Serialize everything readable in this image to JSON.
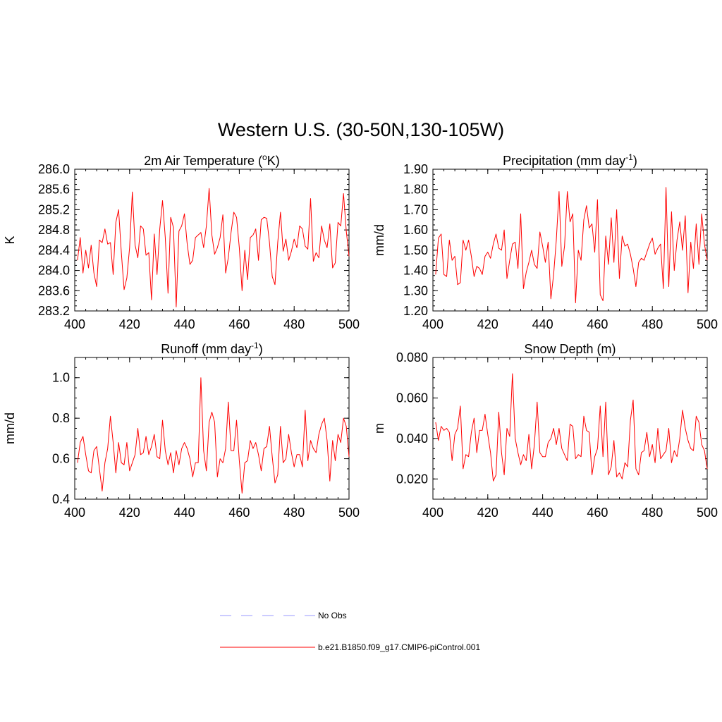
{
  "figure": {
    "title": "Western U.S. (30-50N,130-105W)"
  },
  "legend": [
    {
      "label": "No Obs",
      "color": "#9999ff",
      "dash": true
    },
    {
      "label": "b.e21.B1850.f09_g17.CMIP6-piControl.001",
      "color": "#ff0000",
      "dash": false
    }
  ],
  "chart_data": [
    {
      "type": "line",
      "title": "2m Air Temperature (oK)",
      "title_parts": {
        "pre": "2m Air Temperature (",
        "sup": "o",
        "post": "K)"
      },
      "ylabel": "K",
      "xlim": [
        400,
        500
      ],
      "ylim": [
        283.2,
        286.0
      ],
      "yticks": [
        283.2,
        283.6,
        284.0,
        284.4,
        284.8,
        285.2,
        285.6,
        286.0
      ],
      "ytick_labels": [
        "283.2",
        "283.6",
        "284.0",
        "284.4",
        "284.8",
        "285.2",
        "285.6",
        "286.0"
      ],
      "yminor": 0.1,
      "xticks": [
        400,
        420,
        440,
        460,
        480,
        500
      ],
      "xminor": 4,
      "x_start": 401,
      "series": [
        {
          "color": "#ff0000",
          "values": [
            284.2,
            284.65,
            283.95,
            284.4,
            284.05,
            284.5,
            283.95,
            283.68,
            284.6,
            284.55,
            284.82,
            284.52,
            284.55,
            283.92,
            284.95,
            285.2,
            284.35,
            283.62,
            283.85,
            284.45,
            285.55,
            284.5,
            284.25,
            284.88,
            284.82,
            284.3,
            284.35,
            283.42,
            284.72,
            283.92,
            284.82,
            285.38,
            284.65,
            283.55,
            285.05,
            284.85,
            283.28,
            284.78,
            284.88,
            285.12,
            284.52,
            284.12,
            284.2,
            284.65,
            284.7,
            284.75,
            284.45,
            284.88,
            285.62,
            284.7,
            284.32,
            284.45,
            284.65,
            285.1,
            283.95,
            284.25,
            284.75,
            285.15,
            285.05,
            284.45,
            283.6,
            284.4,
            283.82,
            284.65,
            284.7,
            284.82,
            284.2,
            285.0,
            285.05,
            285.03,
            284.55,
            283.88,
            283.72,
            284.55,
            285.15,
            284.38,
            284.62,
            284.2,
            284.38,
            284.62,
            284.45,
            284.88,
            284.82,
            284.48,
            284.42,
            285.42,
            284.18,
            284.35,
            284.25,
            284.88,
            284.6,
            284.45,
            284.92,
            284.05,
            284.15,
            284.95,
            284.88,
            285.52,
            284.78,
            284.28
          ]
        }
      ]
    },
    {
      "type": "line",
      "title": "Precipitation (mm day-1)",
      "title_parts": {
        "pre": "Precipitation (mm day",
        "sup": "-1",
        "post": ")"
      },
      "ylabel": "mm/d",
      "xlim": [
        400,
        500
      ],
      "ylim": [
        1.2,
        1.9
      ],
      "yticks": [
        1.2,
        1.3,
        1.4,
        1.5,
        1.6,
        1.7,
        1.8,
        1.9
      ],
      "ytick_labels": [
        "1.20",
        "1.30",
        "1.40",
        "1.50",
        "1.60",
        "1.70",
        "1.80",
        "1.90"
      ],
      "yminor": 0.025,
      "xticks": [
        400,
        420,
        440,
        460,
        480,
        500
      ],
      "xminor": 4,
      "x_start": 401,
      "series": [
        {
          "color": "#ff0000",
          "values": [
            1.38,
            1.56,
            1.58,
            1.38,
            1.37,
            1.55,
            1.45,
            1.47,
            1.33,
            1.34,
            1.55,
            1.5,
            1.55,
            1.47,
            1.37,
            1.42,
            1.41,
            1.38,
            1.47,
            1.49,
            1.46,
            1.53,
            1.58,
            1.51,
            1.5,
            1.6,
            1.36,
            1.45,
            1.53,
            1.54,
            1.41,
            1.68,
            1.31,
            1.39,
            1.44,
            1.5,
            1.43,
            1.41,
            1.59,
            1.52,
            1.44,
            1.54,
            1.26,
            1.38,
            1.55,
            1.79,
            1.42,
            1.52,
            1.79,
            1.64,
            1.68,
            1.24,
            1.5,
            1.45,
            1.65,
            1.72,
            1.61,
            1.63,
            1.49,
            1.75,
            1.28,
            1.25,
            1.57,
            1.43,
            1.66,
            1.44,
            1.7,
            1.36,
            1.57,
            1.52,
            1.53,
            1.48,
            1.41,
            1.32,
            1.44,
            1.46,
            1.45,
            1.49,
            1.53,
            1.56,
            1.48,
            1.51,
            1.53,
            1.31,
            1.81,
            1.32,
            1.69,
            1.4,
            1.55,
            1.64,
            1.5,
            1.67,
            1.29,
            1.54,
            1.41,
            1.63,
            1.43,
            1.68,
            1.53,
            1.45
          ]
        }
      ]
    },
    {
      "type": "line",
      "title": "Runoff (mm day-1)",
      "title_parts": {
        "pre": "Runoff (mm day",
        "sup": "-1",
        "post": ")"
      },
      "ylabel": "mm/d",
      "xlim": [
        400,
        500
      ],
      "ylim": [
        0.4,
        1.1
      ],
      "yticks": [
        0.4,
        0.6,
        0.8,
        1.0
      ],
      "ytick_labels": [
        "0.4",
        "0.6",
        "0.8",
        "1.0"
      ],
      "yminor": 0.05,
      "xticks": [
        400,
        420,
        440,
        460,
        480,
        500
      ],
      "xminor": 4,
      "x_start": 401,
      "series": [
        {
          "color": "#ff0000",
          "values": [
            0.58,
            0.68,
            0.71,
            0.62,
            0.54,
            0.53,
            0.64,
            0.66,
            0.55,
            0.44,
            0.58,
            0.65,
            0.81,
            0.68,
            0.53,
            0.68,
            0.58,
            0.57,
            0.68,
            0.54,
            0.58,
            0.62,
            0.75,
            0.62,
            0.63,
            0.71,
            0.62,
            0.66,
            0.72,
            0.61,
            0.6,
            0.79,
            0.64,
            0.57,
            0.63,
            0.53,
            0.64,
            0.57,
            0.65,
            0.68,
            0.65,
            0.6,
            0.51,
            0.58,
            0.58,
            1.0,
            0.64,
            0.54,
            0.78,
            0.83,
            0.78,
            0.51,
            0.6,
            0.58,
            0.65,
            0.88,
            0.64,
            0.64,
            0.79,
            0.59,
            0.43,
            0.58,
            0.59,
            0.69,
            0.65,
            0.68,
            0.62,
            0.54,
            0.65,
            0.66,
            0.76,
            0.61,
            0.48,
            0.52,
            0.76,
            0.58,
            0.6,
            0.72,
            0.63,
            0.56,
            0.62,
            0.62,
            0.56,
            0.84,
            0.59,
            0.69,
            0.65,
            0.63,
            0.72,
            0.77,
            0.8,
            0.69,
            0.49,
            0.69,
            0.59,
            0.72,
            0.68,
            0.8,
            0.76,
            0.61
          ]
        }
      ]
    },
    {
      "type": "line",
      "title": "Snow Depth (m)",
      "title_parts": {
        "pre": "Snow Depth (m)",
        "sup": "",
        "post": ""
      },
      "ylabel": "m",
      "xlim": [
        400,
        500
      ],
      "ylim": [
        0.01,
        0.08
      ],
      "yticks": [
        0.02,
        0.04,
        0.06,
        0.08
      ],
      "ytick_labels": [
        "0.020",
        "0.040",
        "0.060",
        "0.080"
      ],
      "yminor": 0.005,
      "xticks": [
        400,
        420,
        440,
        460,
        480,
        500
      ],
      "xminor": 4,
      "x_start": 401,
      "series": [
        {
          "color": "#ff0000",
          "values": [
            0.048,
            0.039,
            0.046,
            0.044,
            0.045,
            0.043,
            0.029,
            0.042,
            0.045,
            0.056,
            0.025,
            0.032,
            0.031,
            0.043,
            0.05,
            0.033,
            0.044,
            0.044,
            0.052,
            0.042,
            0.033,
            0.019,
            0.022,
            0.053,
            0.033,
            0.022,
            0.045,
            0.041,
            0.072,
            0.04,
            0.033,
            0.027,
            0.032,
            0.029,
            0.042,
            0.025,
            0.037,
            0.058,
            0.033,
            0.031,
            0.031,
            0.038,
            0.04,
            0.045,
            0.037,
            0.045,
            0.035,
            0.032,
            0.029,
            0.047,
            0.046,
            0.03,
            0.032,
            0.031,
            0.051,
            0.044,
            0.043,
            0.022,
            0.031,
            0.035,
            0.056,
            0.031,
            0.058,
            0.022,
            0.026,
            0.039,
            0.021,
            0.023,
            0.02,
            0.028,
            0.026,
            0.049,
            0.059,
            0.025,
            0.022,
            0.033,
            0.034,
            0.043,
            0.031,
            0.037,
            0.028,
            0.045,
            0.03,
            0.032,
            0.034,
            0.045,
            0.028,
            0.034,
            0.031,
            0.04,
            0.054,
            0.045,
            0.039,
            0.035,
            0.034,
            0.051,
            0.048,
            0.037,
            0.034,
            0.025
          ]
        }
      ]
    }
  ]
}
